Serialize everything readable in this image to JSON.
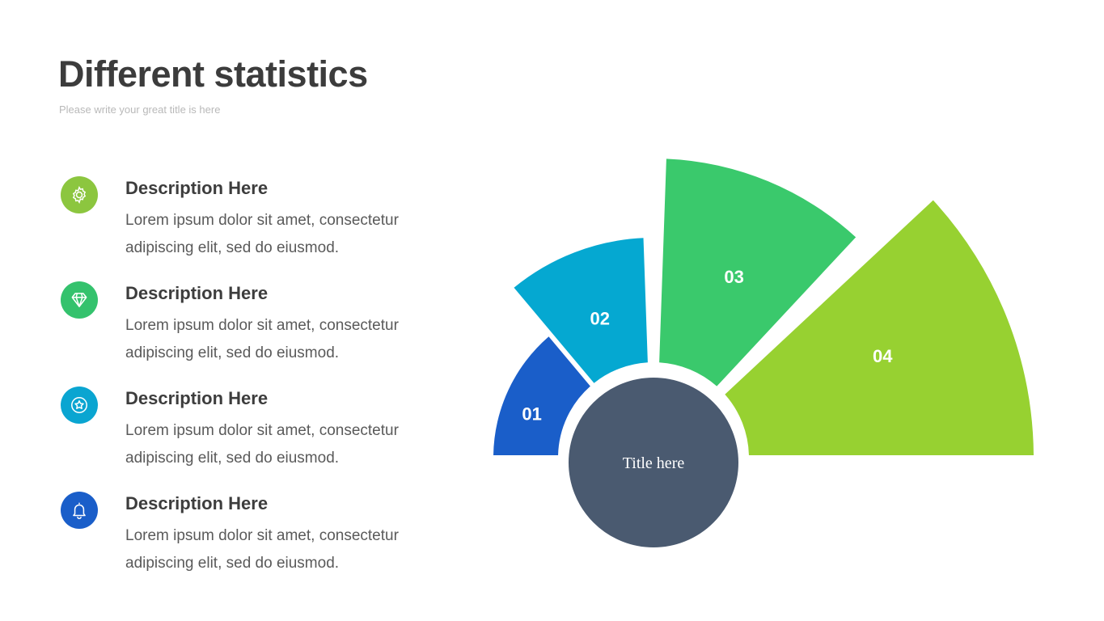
{
  "header": {
    "title": "Different statistics",
    "subtitle": "Please write your great title is here"
  },
  "items": [
    {
      "heading": "Description Here",
      "text": "Lorem ipsum dolor sit amet, consectetur adipiscing elit, sed do eiusmod.",
      "icon": "gear-icon",
      "color": "#8cc63f"
    },
    {
      "heading": "Description Here",
      "text": "Lorem ipsum dolor sit amet, consectetur adipiscing elit, sed do eiusmod.",
      "icon": "diamond-icon",
      "color": "#34c26d"
    },
    {
      "heading": "Description Here",
      "text": "Lorem ipsum dolor sit amet, consectetur adipiscing elit, sed do eiusmod.",
      "icon": "star-badge-icon",
      "color": "#0aa5d1"
    },
    {
      "heading": "Description Here",
      "text": "Lorem ipsum dolor sit amet, consectetur adipiscing elit, sed do eiusmod.",
      "icon": "bell-icon",
      "color": "#1a5ec9"
    }
  ],
  "diagram": {
    "center_label": "Title here",
    "center_color": "#4a5a70",
    "segments": [
      {
        "label": "01",
        "color": "#1a5ec9"
      },
      {
        "label": "02",
        "color": "#05a8d1"
      },
      {
        "label": "03",
        "color": "#3ac96c"
      },
      {
        "label": "04",
        "color": "#97d131"
      }
    ]
  }
}
